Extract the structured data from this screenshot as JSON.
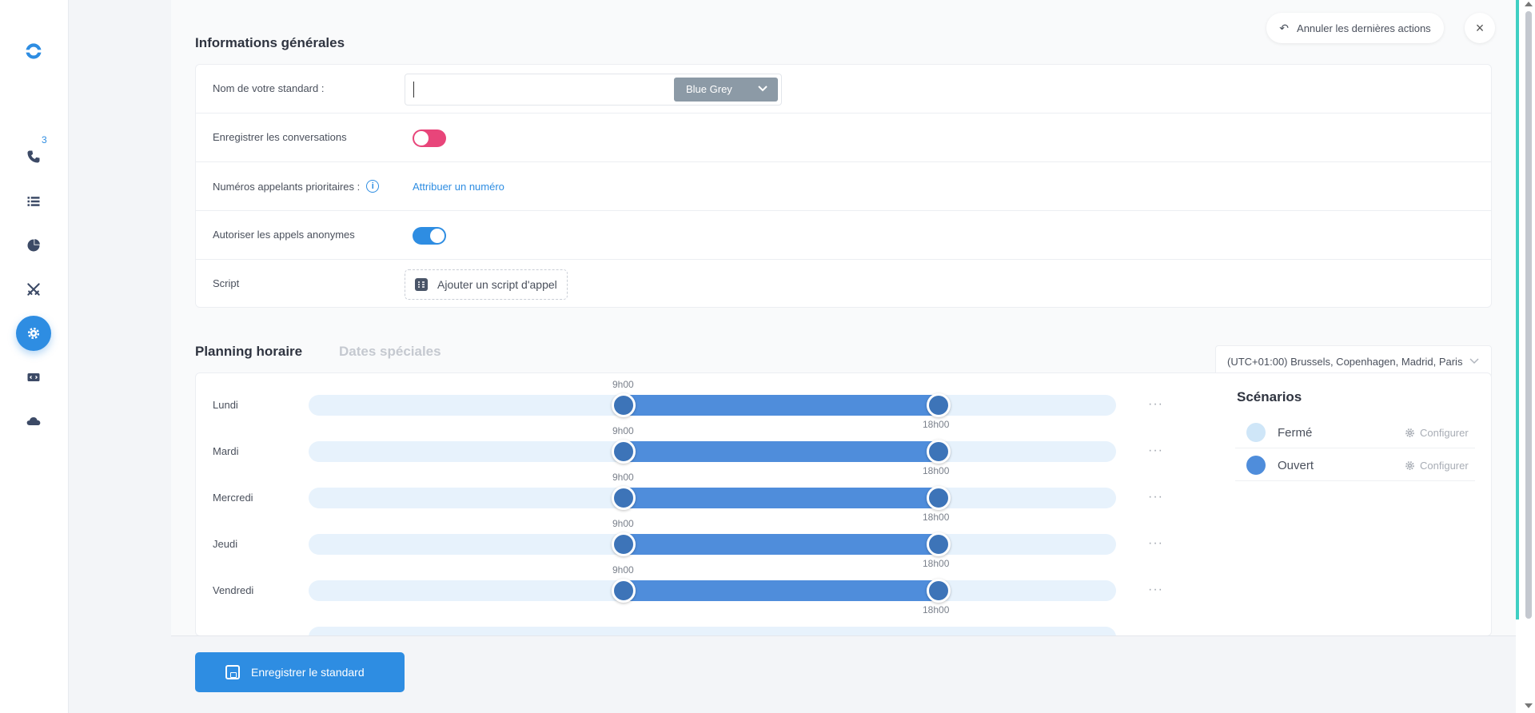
{
  "rail": {
    "calls_badge": "3",
    "icons": [
      "logo-icon",
      "phone-icon",
      "list-icon",
      "chart-pie-icon",
      "crossed-swords-icon",
      "gear-icon",
      "code-icon",
      "cloud-icon"
    ]
  },
  "header": {
    "undo_label": "Annuler les dernières actions",
    "close_label": "×"
  },
  "general": {
    "title": "Informations générales",
    "name_label": "Nom de votre standard :",
    "name_value": "",
    "color_value": "Blue Grey",
    "record_label": "Enregistrer les conversations",
    "record_on": false,
    "priority_label": "Numéros appelants prioritaires :",
    "priority_link": "Attribuer un numéro",
    "anonymous_label": "Autoriser les appels anonymes",
    "anonymous_on": true,
    "script_label": "Script",
    "script_button": "Ajouter un script d'appel"
  },
  "planning": {
    "tab_active": "Planning horaire",
    "tab_inactive": "Dates spéciales",
    "timezone": "(UTC+01:00) Brussels, Copenhagen, Madrid, Paris",
    "day_start_hour": 0,
    "day_end_hour": 24,
    "more_label": "···",
    "days": [
      {
        "name": "Lundi",
        "start": "9h00",
        "end": "18h00",
        "start_h": 9,
        "end_h": 18
      },
      {
        "name": "Mardi",
        "start": "9h00",
        "end": "18h00",
        "start_h": 9,
        "end_h": 18
      },
      {
        "name": "Mercredi",
        "start": "9h00",
        "end": "18h00",
        "start_h": 9,
        "end_h": 18
      },
      {
        "name": "Jeudi",
        "start": "9h00",
        "end": "18h00",
        "start_h": 9,
        "end_h": 18
      },
      {
        "name": "Vendredi",
        "start": "9h00",
        "end": "18h00",
        "start_h": 9,
        "end_h": 18
      }
    ]
  },
  "scenarios": {
    "title": "Scénarios",
    "items": [
      {
        "name": "Fermé",
        "color": "#cfe6f8",
        "configure": "Configurer"
      },
      {
        "name": "Ouvert",
        "color": "#4f8ddb",
        "configure": "Configurer"
      }
    ]
  },
  "footer": {
    "save_label": "Enregistrer le standard"
  },
  "colors": {
    "accent": "#2e8de2",
    "toggle_off": "#e8457a",
    "range": "#4f8ddb",
    "track": "#e7f2fc"
  }
}
